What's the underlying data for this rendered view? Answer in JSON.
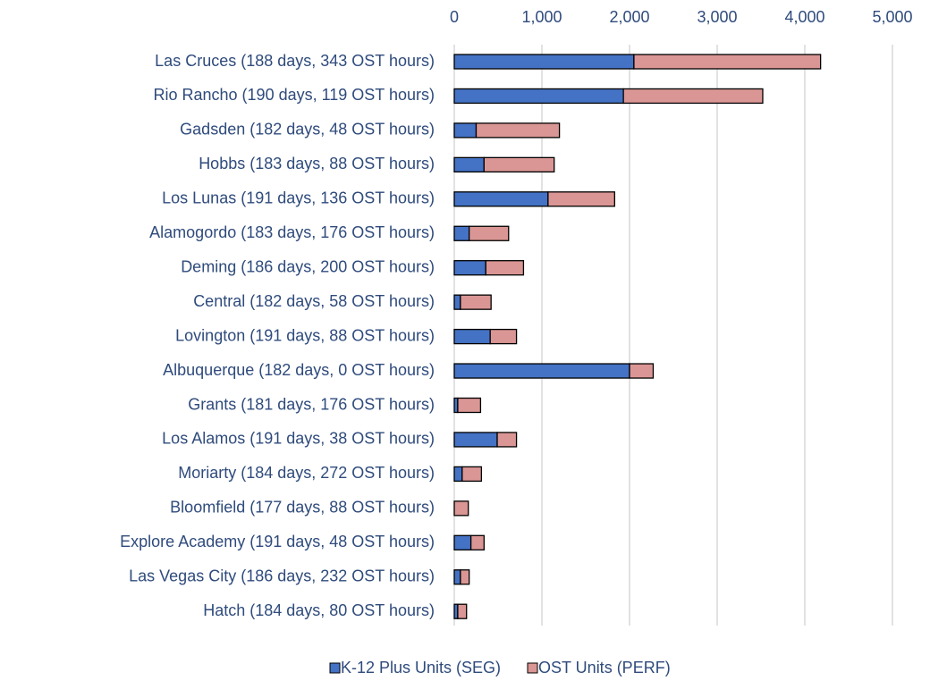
{
  "chart_data": {
    "type": "stacked_bar_horizontal",
    "categories": [
      "Las Cruces (188 days, 343 OST hours)",
      "Rio Rancho (190 days, 119 OST hours)",
      "Gadsden (182 days, 48 OST hours)",
      "Hobbs (183 days, 88 OST hours)",
      "Los Lunas (191 days, 136 OST hours)",
      "Alamogordo (183 days, 176 OST hours)",
      "Deming (186 days, 200 OST hours)",
      "Central (182 days, 58 OST hours)",
      "Lovington (191 days, 88 OST hours)",
      "Albuquerque (182 days, 0 OST hours)",
      "Grants (181 days, 176 OST hours)",
      "Los Alamos (191 days, 38 OST hours)",
      "Moriarty (184 days, 272 OST hours)",
      "Bloomfield (177 days, 88 OST hours)",
      "Explore Academy (191 days, 48 OST hours)",
      "Las Vegas City (186 days, 232 OST hours)",
      "Hatch (184 days, 80 OST hours)"
    ],
    "series": [
      {
        "name": "K-12 Plus Units (SEG)",
        "color": "#4472C4",
        "values": [
          2050,
          1930,
          250,
          340,
          1070,
          170,
          360,
          70,
          410,
          2000,
          40,
          490,
          90,
          0,
          190,
          70,
          40
        ]
      },
      {
        "name": "OST Units (PERF)",
        "color": "#DA9694",
        "values": [
          2130,
          1590,
          950,
          800,
          760,
          450,
          430,
          350,
          300,
          270,
          260,
          220,
          220,
          160,
          150,
          100,
          100
        ]
      }
    ],
    "xlim": [
      0,
      5000
    ],
    "xticks": [
      0,
      {
        "value": 1000,
        "label": "1,000"
      },
      {
        "value": 2000,
        "label": "2,000"
      },
      {
        "value": 3000,
        "label": "3,000"
      },
      {
        "value": 4000,
        "label": "4,000"
      },
      {
        "value": 5000,
        "label": "5,000"
      }
    ],
    "grid": true,
    "legend": "bottom"
  }
}
